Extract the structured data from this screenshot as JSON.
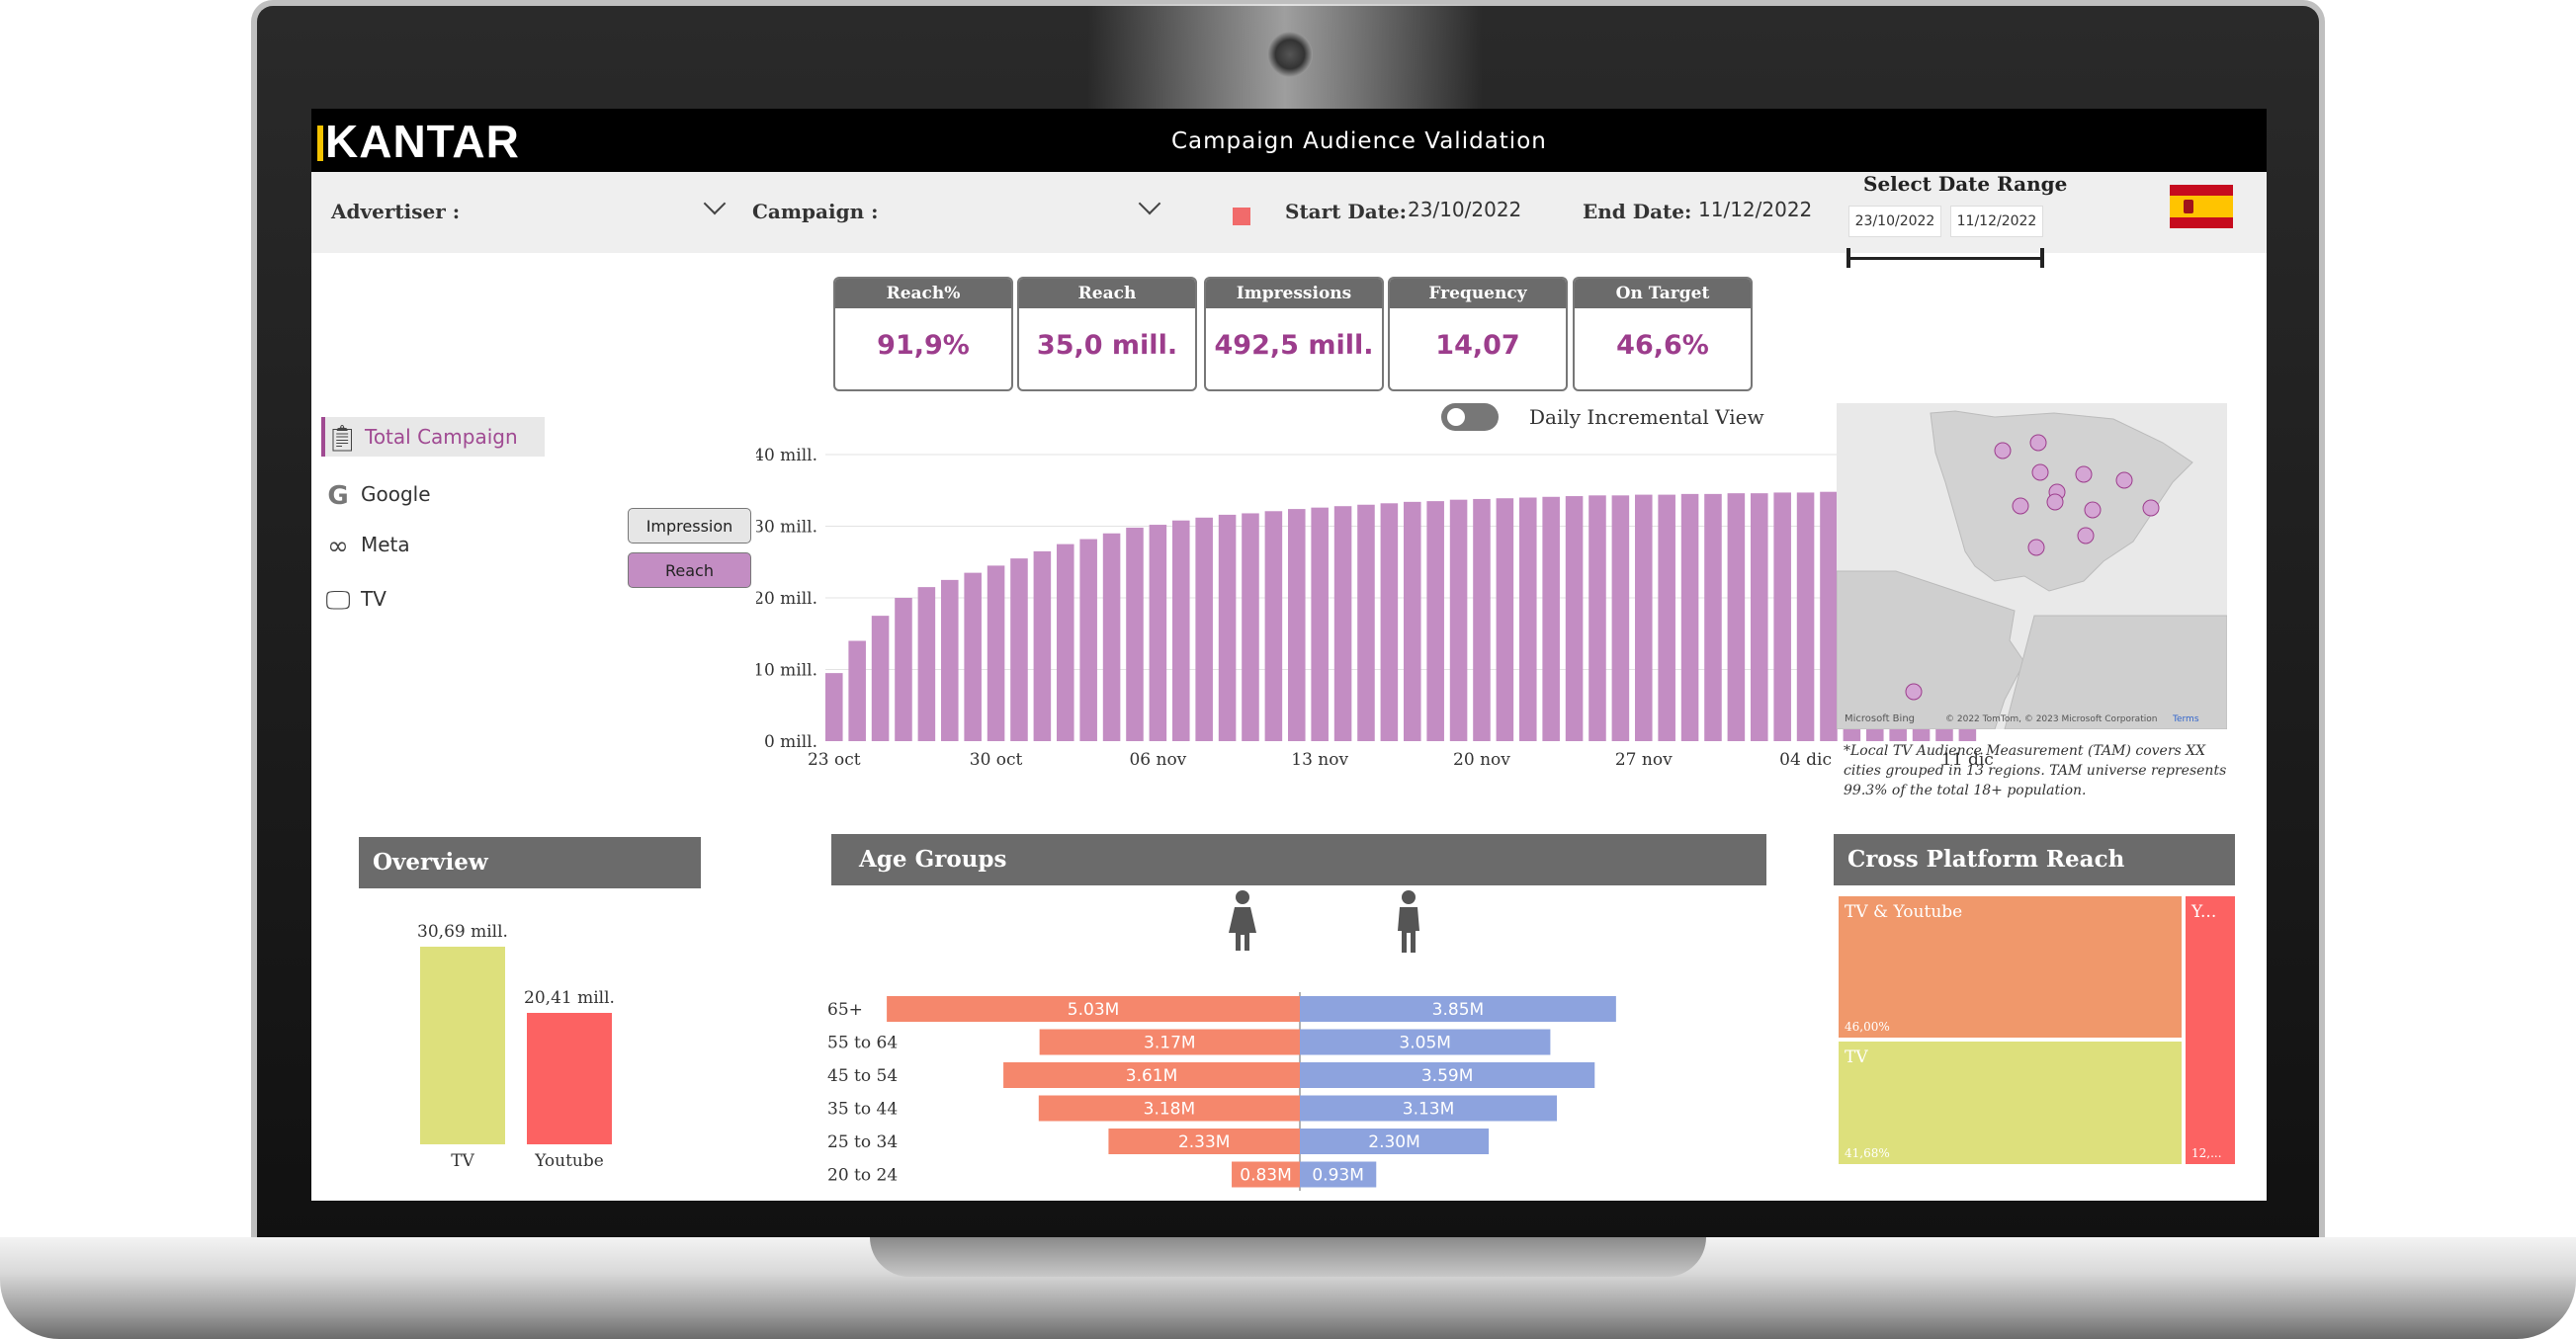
{
  "app": {
    "logo": "KANTAR",
    "title": "Campaign Audience Validation"
  },
  "filters": {
    "advertiser_label": "Advertiser :",
    "campaign_label": "Campaign :",
    "start_label": "Start Date:",
    "start_value": "23/10/2022",
    "end_label": "End Date:",
    "end_value": "11/12/2022",
    "date_range_title": "Select Date Range",
    "range_from": "23/10/2022",
    "range_to": "11/12/2022",
    "color_indicator": "#f16b6b"
  },
  "kpis": [
    {
      "label": "Reach%",
      "value": "91,9%"
    },
    {
      "label": "Reach",
      "value": "35,0 mill."
    },
    {
      "label": "Impressions",
      "value": "492,5 mill."
    },
    {
      "label": "Frequency",
      "value": "14,07"
    },
    {
      "label": "On Target",
      "value": "46,6%"
    }
  ],
  "nav": [
    {
      "label": "Total Campaign",
      "icon": "clipboard-icon",
      "active": true
    },
    {
      "label": "Google",
      "icon": "google-icon",
      "active": false
    },
    {
      "label": "Meta",
      "icon": "meta-icon",
      "active": false
    },
    {
      "label": "TV",
      "icon": "tv-icon",
      "active": false
    }
  ],
  "metric_buttons": {
    "impression": "Impression",
    "reach": "Reach",
    "selected": "Reach"
  },
  "toggle": {
    "label": "Daily Incremental View",
    "on": false
  },
  "map": {
    "attribution_left": "Microsoft Bing",
    "attribution_right": "© 2022 TomTom, © 2023 Microsoft Corporation",
    "attribution_link": "Terms",
    "note": "*Local TV Audience Measurement (TAM) covers XX cities grouped in 13 regions. TAM universe represents 99.3% of the total 18+ population."
  },
  "sections": {
    "overview": "Overview",
    "age_groups": "Age Groups",
    "cross_platform": "Cross Platform Reach"
  },
  "colors": {
    "accent": "#9c3d8c",
    "bar": "#c38dc3",
    "tv": "#dde07c",
    "youtube": "#fc6262",
    "female": "#f5876c",
    "male": "#8da3de",
    "treemap_both": "#f0986b",
    "treemap_tv": "#dde07c",
    "treemap_youtube": "#fc6262"
  },
  "chart_data": [
    {
      "type": "bar",
      "title": "",
      "xlabel": "",
      "ylabel": "",
      "ylim": [
        0,
        40
      ],
      "y_unit": "mill.",
      "yticks": [
        "0 mill.",
        "10 mill.",
        "20 mill.",
        "30 mill.",
        "40 mill."
      ],
      "xticks": [
        "23 oct",
        "30 oct",
        "06 nov",
        "13 nov",
        "20 nov",
        "27 nov",
        "04 dic",
        "11 dic"
      ],
      "x": [
        "23 oct",
        "24 oct",
        "25 oct",
        "26 oct",
        "27 oct",
        "28 oct",
        "29 oct",
        "30 oct",
        "31 oct",
        "01 nov",
        "02 nov",
        "03 nov",
        "04 nov",
        "05 nov",
        "06 nov",
        "07 nov",
        "08 nov",
        "09 nov",
        "10 nov",
        "11 nov",
        "12 nov",
        "13 nov",
        "14 nov",
        "15 nov",
        "16 nov",
        "17 nov",
        "18 nov",
        "19 nov",
        "20 nov",
        "21 nov",
        "22 nov",
        "23 nov",
        "24 nov",
        "25 nov",
        "26 nov",
        "27 nov",
        "28 nov",
        "29 nov",
        "30 nov",
        "01 dic",
        "02 dic",
        "03 dic",
        "04 dic",
        "05 dic",
        "06 dic",
        "07 dic",
        "08 dic",
        "09 dic",
        "10 dic",
        "11 dic"
      ],
      "values": [
        9.5,
        14.0,
        17.5,
        20.0,
        21.5,
        22.5,
        23.5,
        24.5,
        25.5,
        26.5,
        27.5,
        28.2,
        29.0,
        29.8,
        30.2,
        30.8,
        31.2,
        31.6,
        31.8,
        32.1,
        32.4,
        32.6,
        32.8,
        33.0,
        33.2,
        33.4,
        33.5,
        33.7,
        33.8,
        33.9,
        34.0,
        34.1,
        34.2,
        34.3,
        34.3,
        34.4,
        34.4,
        34.5,
        34.5,
        34.6,
        34.6,
        34.7,
        34.7,
        34.8,
        34.8,
        34.8,
        34.9,
        34.9,
        35.0,
        35.0
      ],
      "grid": true
    },
    {
      "type": "bar",
      "categories": [
        "TV",
        "Youtube"
      ],
      "values": [
        30.69,
        20.41
      ],
      "value_labels": [
        "30,69 mill.",
        "20,41 mill."
      ],
      "title": "Overview",
      "xlabel": "",
      "ylabel": ""
    },
    {
      "type": "bar",
      "title": "Age Groups",
      "categories": [
        "65+",
        "55 to 64",
        "45 to 54",
        "35 to 44",
        "25 to 34",
        "20 to 24"
      ],
      "series": [
        {
          "name": "female",
          "values": [
            5.03,
            3.17,
            3.61,
            3.18,
            2.33,
            0.83
          ],
          "labels": [
            "5.03M",
            "3.17M",
            "3.61M",
            "3.18M",
            "2.33M",
            "0.83M"
          ]
        },
        {
          "name": "male",
          "values": [
            3.85,
            3.05,
            3.59,
            3.13,
            2.3,
            0.93
          ],
          "labels": [
            "3.85M",
            "3.05M",
            "3.59M",
            "3.13M",
            "2.30M",
            "0.93M"
          ]
        }
      ]
    },
    {
      "type": "heatmap",
      "title": "Cross Platform Reach",
      "cells": [
        {
          "label": "TV & Youtube",
          "pct_label": "46,00%",
          "value": 46.0
        },
        {
          "label": "TV",
          "pct_label": "41,68%",
          "value": 41.68
        },
        {
          "label": "Y...",
          "pct_label": "12,...",
          "value": 12.32
        }
      ]
    }
  ]
}
